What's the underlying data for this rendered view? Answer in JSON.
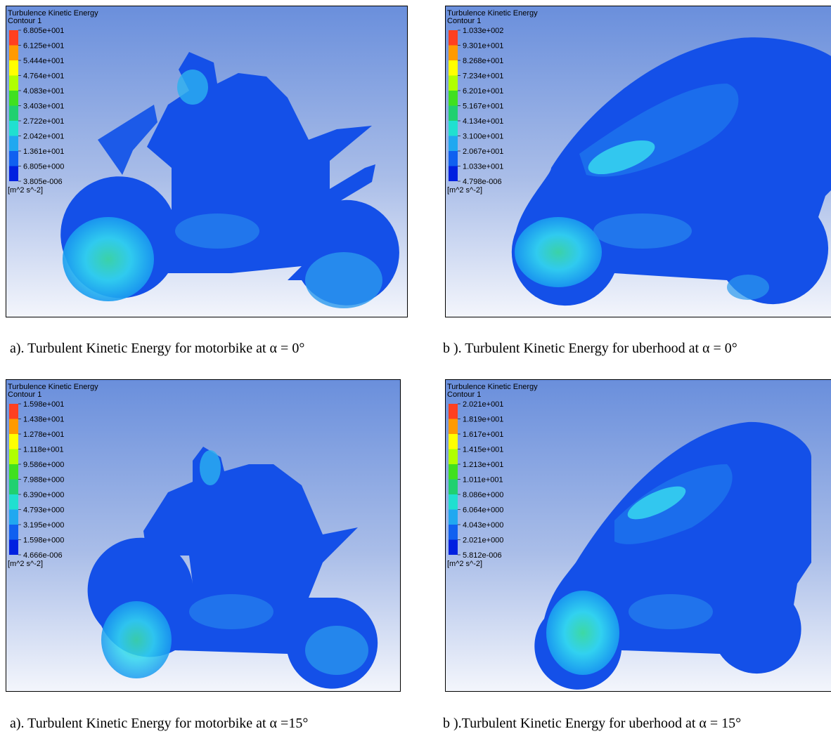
{
  "panels": [
    {
      "title": "Turbulence Kinetic Energy",
      "subtitle": "Contour 1",
      "legend": {
        "labels": [
          "6.805e+001",
          "6.125e+001",
          "5.444e+001",
          "4.764e+001",
          "4.083e+001",
          "3.403e+001",
          "2.722e+001",
          "2.042e+001",
          "1.361e+001",
          "6.805e+000",
          "3.805e-006"
        ],
        "unit": "[m^2 s^-2]"
      },
      "caption": "a). Turbulent Kinetic Energy for motorbike at α = 0°"
    },
    {
      "title": "Turbulence Kinetic Energy",
      "subtitle": "Contour 1",
      "legend": {
        "labels": [
          "1.033e+002",
          "9.301e+001",
          "8.268e+001",
          "7.234e+001",
          "6.201e+001",
          "5.167e+001",
          "4.134e+001",
          "3.100e+001",
          "2.067e+001",
          "1.033e+001",
          "4.798e-006"
        ],
        "unit": "[m^2 s^-2]"
      },
      "caption": "b ). Turbulent Kinetic Energy for uberhood at α = 0°"
    },
    {
      "title": "Turbulence Kinetic Energy",
      "subtitle": "Contour 1",
      "legend": {
        "labels": [
          "1.598e+001",
          "1.438e+001",
          "1.278e+001",
          "1.118e+001",
          "9.586e+000",
          "7.988e+000",
          "6.390e+000",
          "4.793e+000",
          "3.195e+000",
          "1.598e+000",
          "4.666e-006"
        ],
        "unit": "[m^2 s^-2]"
      },
      "caption": "a). Turbulent Kinetic Energy for motorbike at α =15°"
    },
    {
      "title": "Turbulence Kinetic Energy",
      "subtitle": "Contour 1",
      "legend": {
        "labels": [
          "2.021e+001",
          "1.819e+001",
          "1.617e+001",
          "1.415e+001",
          "1.213e+001",
          "1.011e+001",
          "8.086e+000",
          "6.064e+000",
          "4.043e+000",
          "2.021e+000",
          "5.812e-006"
        ],
        "unit": "[m^2 s^-2]"
      },
      "caption": "b ).Turbulent Kinetic Energy for uberhood at α = 15°"
    }
  ]
}
